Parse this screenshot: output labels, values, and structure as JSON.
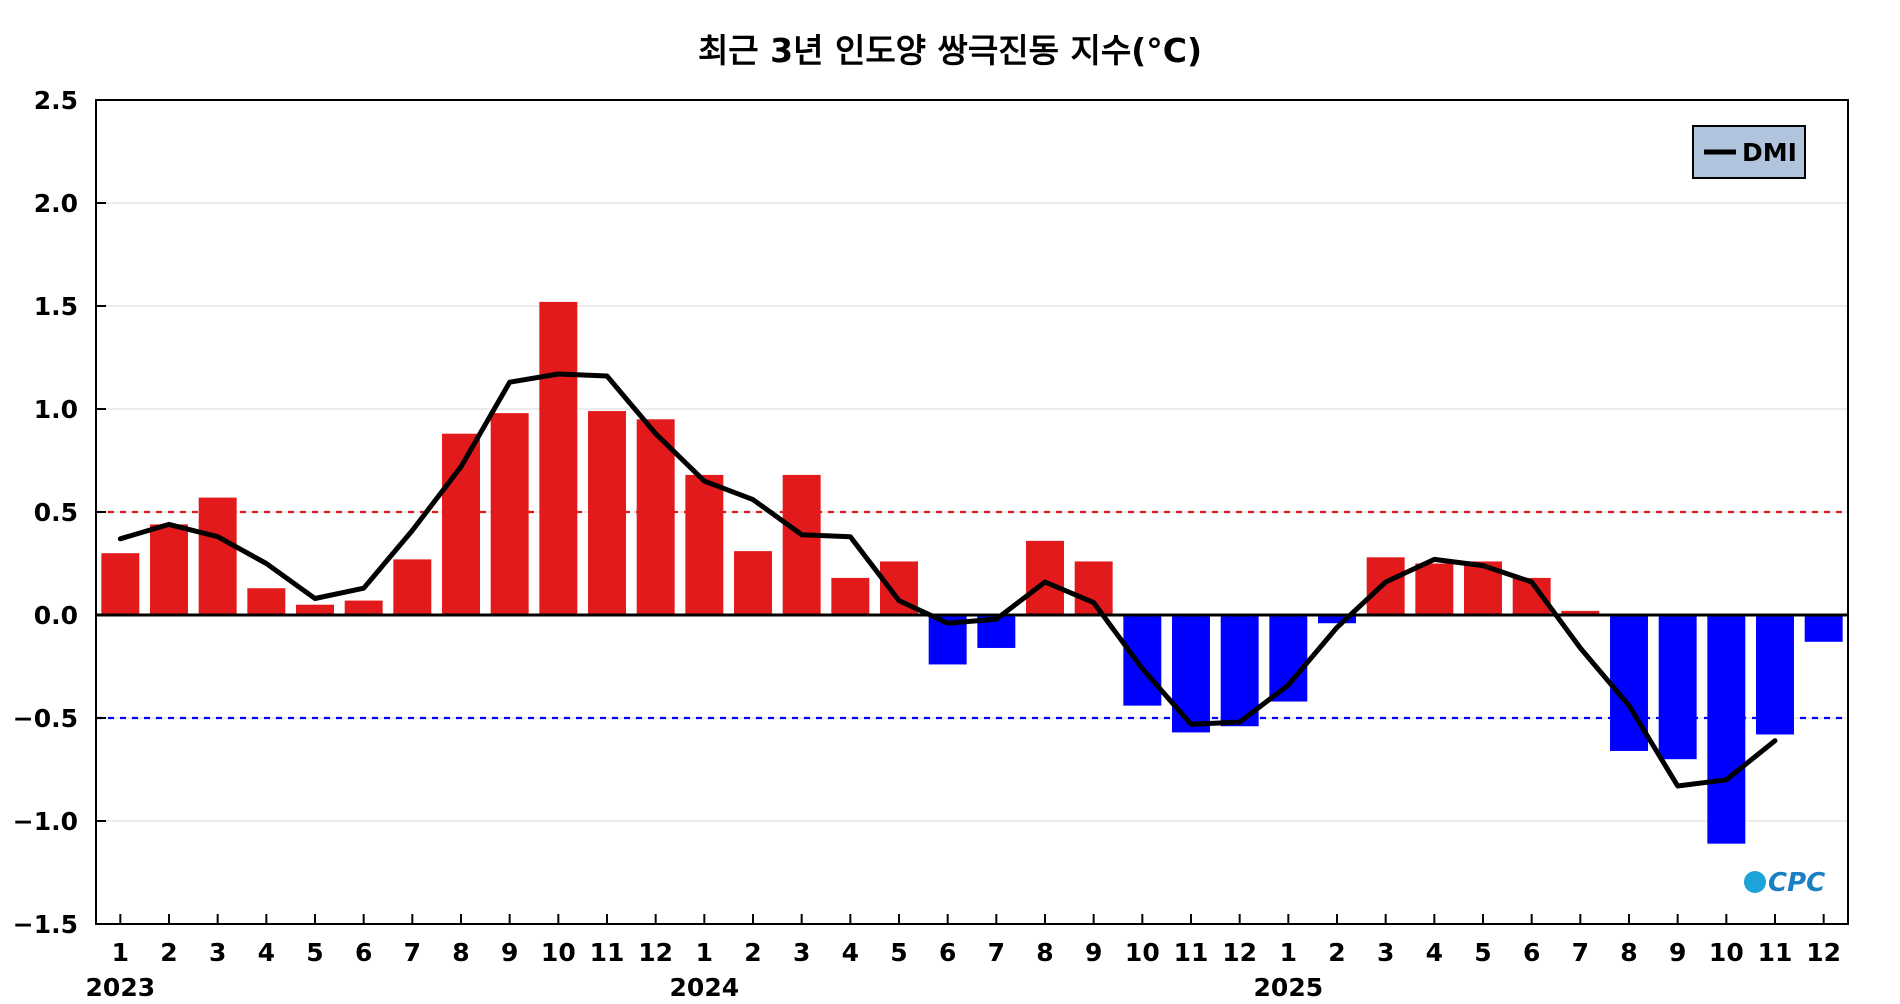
{
  "chart_data": {
    "type": "bar",
    "title": "최근 3년 인도양 쌍극진동 지수(°C)",
    "xlabel": "",
    "ylabel": "",
    "ylim": [
      -1.5,
      2.5
    ],
    "yticks": [
      2.5,
      2.0,
      1.5,
      1.0,
      0.5,
      0.0,
      -0.5,
      -1.0,
      -1.5
    ],
    "ytick_labels": [
      "2.5",
      "2.0",
      "1.5",
      "1.0",
      "0.5",
      "0.0",
      "−0.5",
      "−1.0",
      "−1.5"
    ],
    "categories": [
      "1",
      "2",
      "3",
      "4",
      "5",
      "6",
      "7",
      "8",
      "9",
      "10",
      "11",
      "12",
      "1",
      "2",
      "3",
      "4",
      "5",
      "6",
      "7",
      "8",
      "9",
      "10",
      "11",
      "12",
      "1",
      "2",
      "3",
      "4",
      "5",
      "6",
      "7",
      "8",
      "9",
      "10",
      "11",
      "12"
    ],
    "years": [
      {
        "label": "2023",
        "start_index": 0
      },
      {
        "label": "2024",
        "start_index": 12
      },
      {
        "label": "2025",
        "start_index": 24
      }
    ],
    "grid": true,
    "legend_position": "top-right",
    "positive_color": "#e31a1c",
    "negative_color": "#0000ff",
    "threshold_lines": [
      {
        "value": 0.5,
        "color": "#e31a1c",
        "style": "dashed"
      },
      {
        "value": -0.5,
        "color": "#0000ff",
        "style": "dashed"
      }
    ],
    "series": [
      {
        "kind": "bar",
        "values": [
          0.3,
          0.44,
          0.57,
          0.13,
          0.05,
          0.07,
          0.27,
          0.88,
          0.98,
          1.52,
          0.99,
          0.95,
          0.68,
          0.31,
          0.68,
          0.18,
          0.26,
          -0.24,
          -0.16,
          0.36,
          0.26,
          -0.44,
          -0.57,
          -0.54,
          -0.42,
          -0.04,
          0.28,
          0.25,
          0.26,
          0.18,
          0.02,
          -0.66,
          -0.7,
          -1.11,
          -0.58,
          -0.13
        ]
      },
      {
        "name": "DMI",
        "kind": "line",
        "color": "#000000",
        "values": [
          0.37,
          0.44,
          0.38,
          0.25,
          0.08,
          0.13,
          0.41,
          0.72,
          1.13,
          1.17,
          1.16,
          0.88,
          0.65,
          0.56,
          0.39,
          0.38,
          0.07,
          -0.04,
          -0.02,
          0.16,
          0.06,
          -0.26,
          -0.53,
          -0.52,
          -0.34,
          -0.06,
          0.16,
          0.27,
          0.24,
          0.16,
          -0.16,
          -0.44,
          -0.83,
          -0.8,
          -0.61,
          null
        ]
      }
    ],
    "legend_box_color": "#b0c4de",
    "logo_text": "CPC"
  }
}
